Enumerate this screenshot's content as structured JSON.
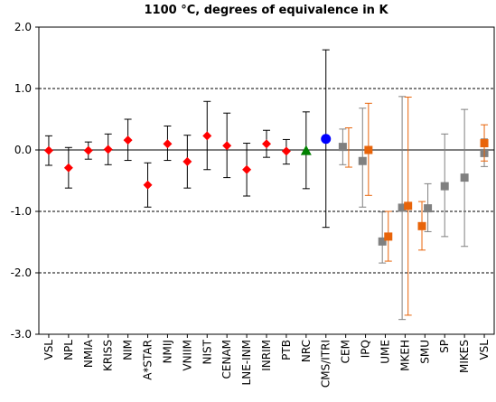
{
  "chart_data": {
    "type": "scatter",
    "title": "1100 °C, degrees of equivalence  in K",
    "xlabel": "",
    "ylabel": "",
    "ylim": [
      -3.0,
      2.0
    ],
    "yticks": [
      "2.0",
      "1.0",
      "0.0",
      "-1.0",
      "-2.0",
      "-3.0"
    ],
    "ytick_values": [
      2.0,
      1.0,
      0.0,
      -1.0,
      -2.0,
      -3.0
    ],
    "dashed_gridlines_at": [
      1.0,
      -1.0,
      -2.0
    ],
    "solid_line_at": 0.0,
    "categories": [
      "VSL",
      "NPL",
      "NMIA",
      "KRISS",
      "NIM",
      "A*STAR",
      "NMIJ",
      "VNIIM",
      "NIST",
      "CENAM",
      "LNE-INM",
      "INRIM",
      "PTB",
      "NRC",
      "CMS/ITRI",
      "CEM",
      "IPQ",
      "UME",
      "MKEH",
      "SMU",
      "SP",
      "MIKES",
      "VSL"
    ],
    "colors": {
      "red": "#ff0000",
      "green": "#008000",
      "blue": "#0000ff",
      "gray": "#808080",
      "orange": "#e8640a",
      "black": "#000000"
    },
    "points": [
      {
        "category_index": 0,
        "value": -0.01,
        "lower": -0.25,
        "upper": 0.23,
        "marker": "diamond",
        "color": "#ff0000",
        "bar_color": "#000000"
      },
      {
        "category_index": 1,
        "value": -0.29,
        "lower": -0.62,
        "upper": 0.04,
        "marker": "diamond",
        "color": "#ff0000",
        "bar_color": "#000000"
      },
      {
        "category_index": 2,
        "value": -0.01,
        "lower": -0.15,
        "upper": 0.13,
        "marker": "diamond",
        "color": "#ff0000",
        "bar_color": "#000000"
      },
      {
        "category_index": 3,
        "value": 0.01,
        "lower": -0.24,
        "upper": 0.26,
        "marker": "diamond",
        "color": "#ff0000",
        "bar_color": "#000000"
      },
      {
        "category_index": 4,
        "value": 0.16,
        "lower": -0.17,
        "upper": 0.5,
        "marker": "diamond",
        "color": "#ff0000",
        "bar_color": "#000000"
      },
      {
        "category_index": 5,
        "value": -0.57,
        "lower": -0.93,
        "upper": -0.21,
        "marker": "diamond",
        "color": "#ff0000",
        "bar_color": "#000000"
      },
      {
        "category_index": 6,
        "value": 0.1,
        "lower": -0.17,
        "upper": 0.39,
        "marker": "diamond",
        "color": "#ff0000",
        "bar_color": "#000000"
      },
      {
        "category_index": 7,
        "value": -0.19,
        "lower": -0.62,
        "upper": 0.24,
        "marker": "diamond",
        "color": "#ff0000",
        "bar_color": "#000000"
      },
      {
        "category_index": 8,
        "value": 0.23,
        "lower": -0.32,
        "upper": 0.79,
        "marker": "diamond",
        "color": "#ff0000",
        "bar_color": "#000000"
      },
      {
        "category_index": 9,
        "value": 0.07,
        "lower": -0.45,
        "upper": 0.6,
        "marker": "diamond",
        "color": "#ff0000",
        "bar_color": "#000000"
      },
      {
        "category_index": 10,
        "value": -0.32,
        "lower": -0.75,
        "upper": 0.11,
        "marker": "diamond",
        "color": "#ff0000",
        "bar_color": "#000000"
      },
      {
        "category_index": 11,
        "value": 0.1,
        "lower": -0.12,
        "upper": 0.32,
        "marker": "diamond",
        "color": "#ff0000",
        "bar_color": "#000000"
      },
      {
        "category_index": 12,
        "value": -0.02,
        "lower": -0.23,
        "upper": 0.17,
        "marker": "diamond",
        "color": "#ff0000",
        "bar_color": "#000000"
      },
      {
        "category_index": 13,
        "value": -0.01,
        "lower": -0.63,
        "upper": 0.62,
        "marker": "triangle",
        "color": "#008000",
        "bar_color": "#000000"
      },
      {
        "category_index": 14,
        "value": 0.18,
        "lower": -1.26,
        "upper": 1.63,
        "marker": "circle",
        "color": "#0000ff",
        "bar_color": "#000000"
      },
      {
        "category_index": 15,
        "value": 0.05,
        "lower": -0.24,
        "upper": 0.34,
        "marker": "square",
        "color": "#808080",
        "bar_color": "#808080",
        "offset": -0.15
      },
      {
        "category_index": 15,
        "value": 0.04,
        "lower": -0.28,
        "upper": 0.36,
        "marker": "square",
        "color": "#e8640a",
        "bar_color": "#e8640a",
        "offset": 0.15,
        "hidden_marker": true
      },
      {
        "category_index": 16,
        "value": -0.18,
        "lower": -0.93,
        "upper": 0.68,
        "marker": "square",
        "color": "#808080",
        "bar_color": "#808080",
        "offset": -0.15
      },
      {
        "category_index": 16,
        "value": 0.0,
        "lower": -0.74,
        "upper": 0.76,
        "marker": "square",
        "color": "#e8640a",
        "bar_color": "#e8640a",
        "offset": 0.15
      },
      {
        "category_index": 17,
        "value": -1.49,
        "lower": -1.84,
        "upper": -1.01,
        "marker": "square",
        "color": "#808080",
        "bar_color": "#808080",
        "offset": -0.15
      },
      {
        "category_index": 17,
        "value": -1.41,
        "lower": -1.81,
        "upper": -1.0,
        "marker": "square",
        "color": "#e8640a",
        "bar_color": "#e8640a",
        "offset": 0.15
      },
      {
        "category_index": 18,
        "value": -0.94,
        "lower": -2.76,
        "upper": 0.87,
        "marker": "square",
        "color": "#808080",
        "bar_color": "#808080",
        "offset": -0.15
      },
      {
        "category_index": 18,
        "value": -0.91,
        "lower": -2.69,
        "upper": 0.86,
        "marker": "square",
        "color": "#e8640a",
        "bar_color": "#e8640a",
        "offset": 0.15
      },
      {
        "category_index": 19,
        "value": -0.95,
        "lower": -1.33,
        "upper": -0.55,
        "marker": "square",
        "color": "#808080",
        "bar_color": "#808080",
        "offset": 0.15
      },
      {
        "category_index": 19,
        "value": -1.24,
        "lower": -1.63,
        "upper": -0.84,
        "marker": "square",
        "color": "#e8640a",
        "bar_color": "#e8640a",
        "offset": -0.15
      },
      {
        "category_index": 20,
        "value": -0.59,
        "lower": -1.41,
        "upper": 0.26,
        "marker": "square",
        "color": "#808080",
        "bar_color": "#808080",
        "offset": 0.0
      },
      {
        "category_index": 21,
        "value": -0.45,
        "lower": -1.57,
        "upper": 0.66,
        "marker": "square",
        "color": "#808080",
        "bar_color": "#808080",
        "offset": 0.0
      },
      {
        "category_index": 22,
        "value": -0.05,
        "lower": -0.27,
        "upper": 0.18,
        "marker": "square",
        "color": "#808080",
        "bar_color": "#808080",
        "offset": 0.0
      },
      {
        "category_index": 22,
        "value": 0.11,
        "lower": -0.18,
        "upper": 0.41,
        "marker": "square",
        "color": "#e8640a",
        "bar_color": "#e8640a",
        "offset": 0.0
      }
    ]
  }
}
